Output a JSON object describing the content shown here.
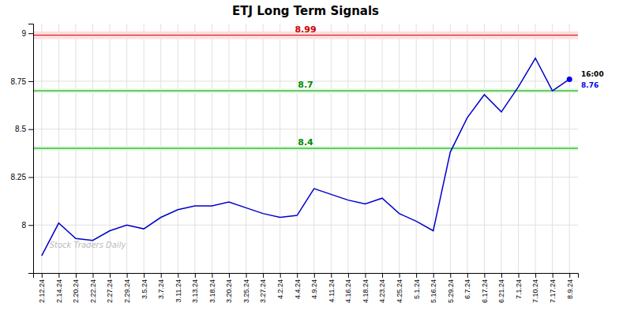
{
  "chart_data": {
    "type": "line",
    "title": "ETJ Long Term Signals",
    "categories": [
      "2.12.24",
      "2.14.24",
      "2.20.24",
      "2.22.24",
      "2.27.24",
      "2.29.24",
      "3.5.24",
      "3.7.24",
      "3.11.24",
      "3.13.24",
      "3.18.24",
      "3.20.24",
      "3.25.24",
      "3.27.24",
      "4.2.24",
      "4.4.24",
      "4.9.24",
      "4.11.24",
      "4.16.24",
      "4.18.24",
      "4.23.24",
      "4.25.24",
      "5.1.24",
      "5.16.24",
      "5.29.24",
      "6.7.24",
      "6.17.24",
      "6.21.24",
      "7.1.24",
      "7.10.24",
      "7.17.24",
      "8.9.24"
    ],
    "values": [
      7.84,
      8.01,
      7.93,
      7.92,
      7.97,
      8.0,
      7.98,
      8.04,
      8.08,
      8.1,
      8.1,
      8.12,
      8.09,
      8.06,
      8.04,
      8.05,
      8.19,
      8.16,
      8.13,
      8.11,
      8.14,
      8.06,
      8.02,
      7.97,
      8.38,
      8.56,
      8.68,
      8.59,
      8.72,
      8.87,
      8.7,
      8.76
    ],
    "color": "#0000cc",
    "ylim": [
      7.75,
      9.05
    ],
    "yticks": [
      8,
      8.25,
      8.5,
      8.75,
      9
    ],
    "grid": true,
    "hlines": [
      {
        "y": 8.99,
        "label": "8.99",
        "color": "#cc0000",
        "band": [
          8.97,
          9.01
        ],
        "band_color": "#ffdddd"
      },
      {
        "y": 8.7,
        "label": "8.7",
        "color": "#008800",
        "band": [
          8.688,
          8.712
        ],
        "band_color": "#ddffdd"
      },
      {
        "y": 8.4,
        "label": "8.4",
        "color": "#008800",
        "band": [
          8.388,
          8.412
        ],
        "band_color": "#ddffdd"
      }
    ],
    "last_label": "16:00",
    "last_value_label": "8.76",
    "last_color": "#0000ee",
    "watermark": "Stock Traders Daily"
  }
}
